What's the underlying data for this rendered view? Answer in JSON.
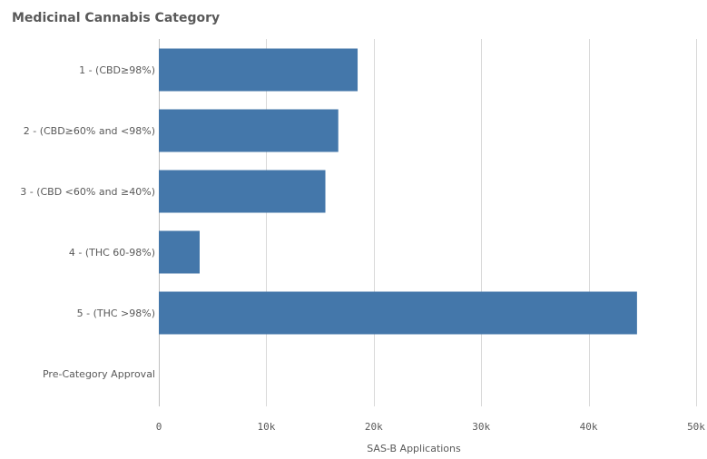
{
  "chart_data": {
    "type": "bar",
    "orientation": "horizontal",
    "title": "Medicinal Cannabis Category",
    "categories": [
      "1 - (CBD≥98%)",
      "2 - (CBD≥60% and <98%)",
      "3 - (CBD <60% and ≥40%)",
      "4 - (THC 60-98%)",
      "5 - (THC >98%)",
      "Pre-Category Approval"
    ],
    "values": [
      18500,
      16700,
      15500,
      3800,
      44500,
      0
    ],
    "xlabel": "SAS-B Applications",
    "ylabel": "",
    "xlim": [
      0,
      50000
    ],
    "ticks": [
      0,
      10000,
      20000,
      30000,
      40000,
      50000
    ],
    "tick_labels": [
      "0",
      "10k",
      "20k",
      "30k",
      "40k",
      "50k"
    ],
    "grid": true,
    "bar_color": "#4477aa"
  }
}
